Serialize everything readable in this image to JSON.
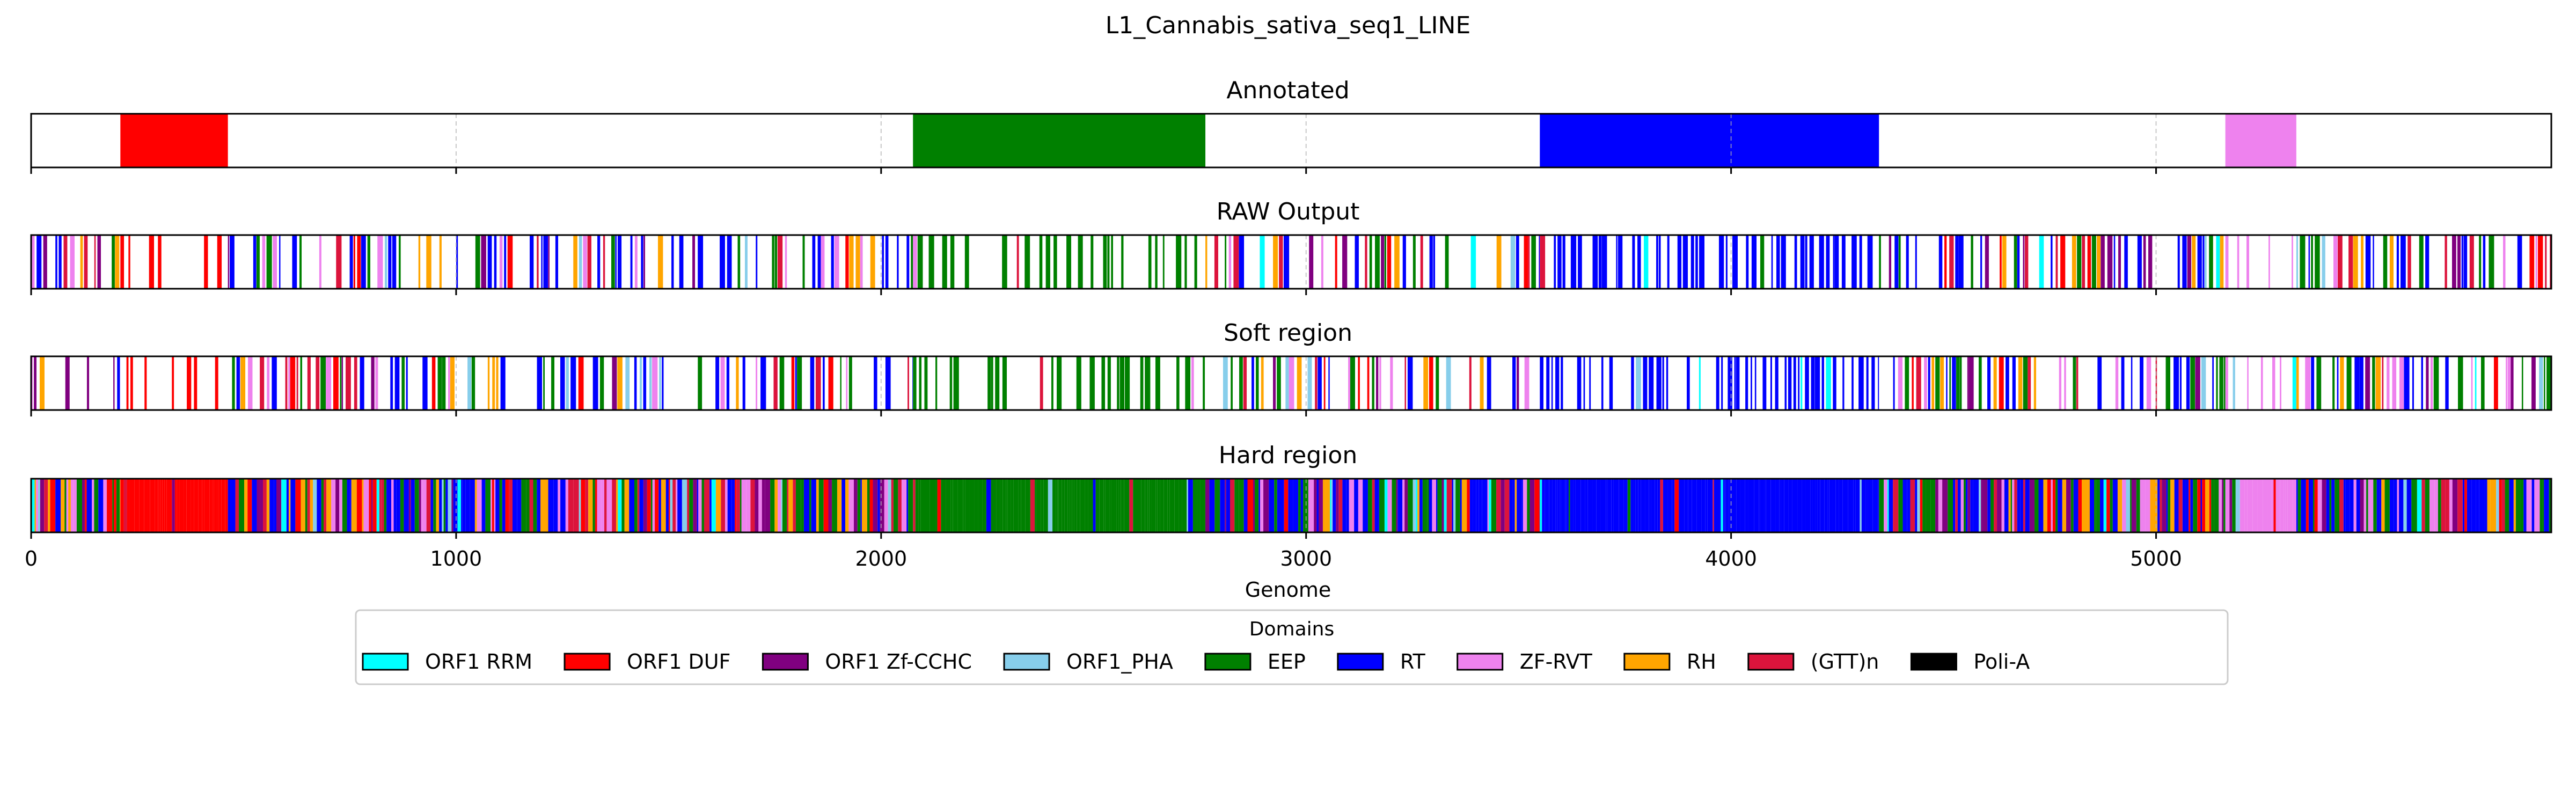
{
  "chart_data": {
    "type": "track",
    "title": "L1_Cannabis_sativa_seq1_LINE",
    "xlabel": "Genome",
    "xlim": [
      0,
      5930
    ],
    "xticks": [
      0,
      1000,
      2000,
      3000,
      4000,
      5000
    ],
    "grid": "x dashed",
    "legend": {
      "title": "Domains",
      "placement": "bottom-center",
      "entries": [
        {
          "label": "ORF1 RRM",
          "color": "#00ffff"
        },
        {
          "label": "ORF1 DUF",
          "color": "#ff0000"
        },
        {
          "label": "ORF1 Zf-CCHC",
          "color": "#800080"
        },
        {
          "label": "ORF1_PHA",
          "color": "#87ceeb"
        },
        {
          "label": "EEP",
          "color": "#008000"
        },
        {
          "label": "RT",
          "color": "#0000ff"
        },
        {
          "label": "ZF-RVT",
          "color": "#ee82ee"
        },
        {
          "label": "RH",
          "color": "#ffa500"
        },
        {
          "label": "(GTT)n",
          "color": "#dc143c"
        },
        {
          "label": "Poli-A",
          "color": "#000000"
        }
      ]
    },
    "panels": [
      {
        "title": "Annotated",
        "mode": "segments",
        "segments": [
          {
            "domain": "ORF1 DUF",
            "start": 210,
            "end": 463
          },
          {
            "domain": "EEP",
            "start": 2075,
            "end": 2763
          },
          {
            "domain": "RT",
            "start": 3550,
            "end": 4348
          },
          {
            "domain": "ZF-RVT",
            "start": 5163,
            "end": 5330
          }
        ]
      },
      {
        "title": "RAW Output",
        "mode": "sparse",
        "seed": 11,
        "regions": [
          {
            "start": 0,
            "end": 210,
            "palette": "mixed",
            "density": 0.6
          },
          {
            "start": 210,
            "end": 463,
            "palette": "ORF1 DUF",
            "density": 0.45
          },
          {
            "start": 463,
            "end": 2075,
            "palette": "mixed",
            "density": 0.55
          },
          {
            "start": 2075,
            "end": 2763,
            "palette": "EEP",
            "density": 0.55
          },
          {
            "start": 2763,
            "end": 3550,
            "palette": "mixed",
            "density": 0.55
          },
          {
            "start": 3550,
            "end": 4348,
            "palette": "RT",
            "density": 0.7
          },
          {
            "start": 4348,
            "end": 5163,
            "palette": "mixed",
            "density": 0.7
          },
          {
            "start": 5163,
            "end": 5330,
            "palette": "ZF-RVT",
            "density": 0.35
          },
          {
            "start": 5330,
            "end": 5930,
            "palette": "mixed",
            "density": 0.7
          }
        ]
      },
      {
        "title": "Soft region",
        "mode": "sparse",
        "seed": 23,
        "regions": [
          {
            "start": 0,
            "end": 210,
            "palette": "mixed",
            "density": 0.6
          },
          {
            "start": 210,
            "end": 463,
            "palette": "ORF1 DUF",
            "density": 0.45
          },
          {
            "start": 463,
            "end": 2075,
            "palette": "mixed",
            "density": 0.55
          },
          {
            "start": 2075,
            "end": 2763,
            "palette": "EEP",
            "density": 0.55
          },
          {
            "start": 2763,
            "end": 3550,
            "palette": "mixed",
            "density": 0.55
          },
          {
            "start": 3550,
            "end": 4348,
            "palette": "RT",
            "density": 0.7
          },
          {
            "start": 4348,
            "end": 5163,
            "palette": "mixed",
            "density": 0.7
          },
          {
            "start": 5163,
            "end": 5330,
            "palette": "ZF-RVT",
            "density": 0.35
          },
          {
            "start": 5330,
            "end": 5930,
            "palette": "mixed",
            "density": 0.7
          }
        ]
      },
      {
        "title": "Hard region",
        "mode": "dense",
        "seed": 37,
        "regions": [
          {
            "start": 0,
            "end": 210,
            "palette": "mixed"
          },
          {
            "start": 210,
            "end": 463,
            "palette": "ORF1 DUF"
          },
          {
            "start": 463,
            "end": 2075,
            "palette": "mixed"
          },
          {
            "start": 2075,
            "end": 2763,
            "palette": "EEP"
          },
          {
            "start": 2763,
            "end": 3550,
            "palette": "mixed"
          },
          {
            "start": 3550,
            "end": 4348,
            "palette": "RT"
          },
          {
            "start": 4348,
            "end": 5163,
            "palette": "mixed"
          },
          {
            "start": 5163,
            "end": 5330,
            "palette": "ZF-RVT"
          },
          {
            "start": 5330,
            "end": 5930,
            "palette": "mixed"
          }
        ]
      }
    ]
  }
}
